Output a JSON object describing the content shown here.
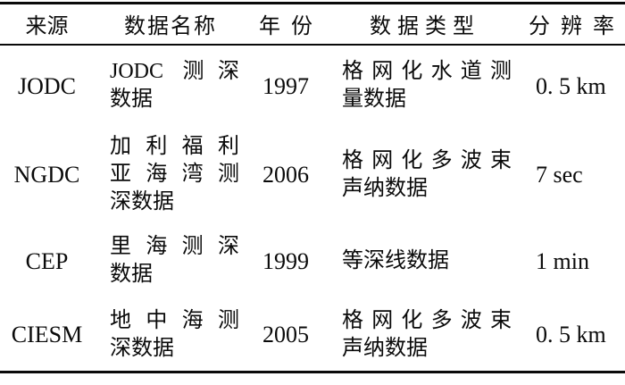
{
  "table": {
    "headers": {
      "source": "来源",
      "name": "数据名称",
      "year": "年份",
      "type": "数据类型",
      "resolution": "分辨率"
    },
    "rows": [
      {
        "source": "JODC",
        "name_lines": [
          "JODC 测深",
          "数据"
        ],
        "year": "1997",
        "type_lines": [
          "格网化水道测",
          "量数据"
        ],
        "resolution": "0. 5 km"
      },
      {
        "source": "NGDC",
        "name_lines": [
          "加利福利",
          "亚海湾测",
          "深数据"
        ],
        "year": "2006",
        "type_lines": [
          "格网化多波束",
          "声纳数据"
        ],
        "resolution": "7 sec"
      },
      {
        "source": "CEP",
        "name_lines": [
          "里海测深",
          "数据"
        ],
        "year": "1999",
        "type_lines": [
          "等深线数据"
        ],
        "resolution": "1 min"
      },
      {
        "source": "CIESM",
        "name_lines": [
          "地中海测",
          "深数据"
        ],
        "year": "2005",
        "type_lines": [
          "格网化多波束",
          "声纳数据"
        ],
        "resolution": "0. 5 km"
      }
    ],
    "style": {
      "text_color": "#0a0a0a",
      "background_color": "#ffffff",
      "rule_color": "#0a0a0a"
    }
  }
}
